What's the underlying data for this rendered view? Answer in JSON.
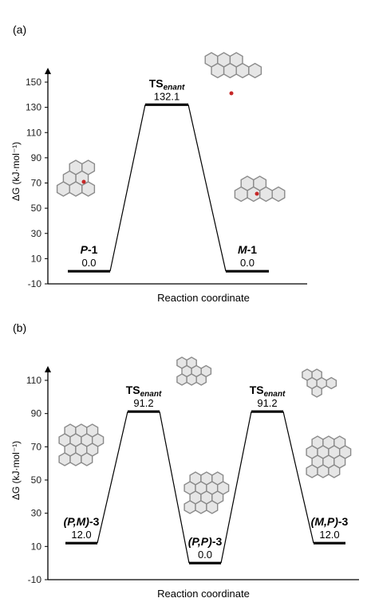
{
  "chart_data": [
    {
      "type": "line",
      "panel_label": "(a)",
      "xlabel": "Reaction coordinate",
      "ylabel": "ΔG (kJ·mol⁻¹)",
      "ylim": [
        -10,
        150
      ],
      "yticks": [
        -10,
        10,
        30,
        50,
        70,
        90,
        110,
        130,
        150
      ],
      "states": [
        {
          "label_main": "P",
          "label_suffix": "-1",
          "label_sub": "",
          "value": 0.0,
          "value_text": "0.0"
        },
        {
          "label_main": "TS",
          "label_suffix": "",
          "label_sub": "enant",
          "value": 132.1,
          "value_text": "132.1"
        },
        {
          "label_main": "M",
          "label_suffix": "-1",
          "label_sub": "",
          "value": 0.0,
          "value_text": "0.0"
        }
      ]
    },
    {
      "type": "line",
      "panel_label": "(b)",
      "xlabel": "Reaction coordinate",
      "ylabel": "ΔG (kJ·mol⁻¹)",
      "ylim": [
        -10,
        110
      ],
      "yticks": [
        -10,
        10,
        30,
        50,
        70,
        90,
        110
      ],
      "states": [
        {
          "label_main": "(P,M)",
          "label_suffix": "-3",
          "label_sub": "",
          "value": 12.0,
          "value_text": "12.0"
        },
        {
          "label_main": "TS",
          "label_suffix": "",
          "label_sub": "enant",
          "value": 91.2,
          "value_text": "91.2"
        },
        {
          "label_main": "(P,P)",
          "label_suffix": "-3",
          "label_sub": "",
          "value": 0.0,
          "value_text": "0.0"
        },
        {
          "label_main": "TS",
          "label_suffix": "",
          "label_sub": "enant",
          "value": 91.2,
          "value_text": "91.2"
        },
        {
          "label_main": "(M,P)",
          "label_suffix": "-3",
          "label_sub": "",
          "value": 12.0,
          "value_text": "12.0"
        }
      ]
    }
  ]
}
